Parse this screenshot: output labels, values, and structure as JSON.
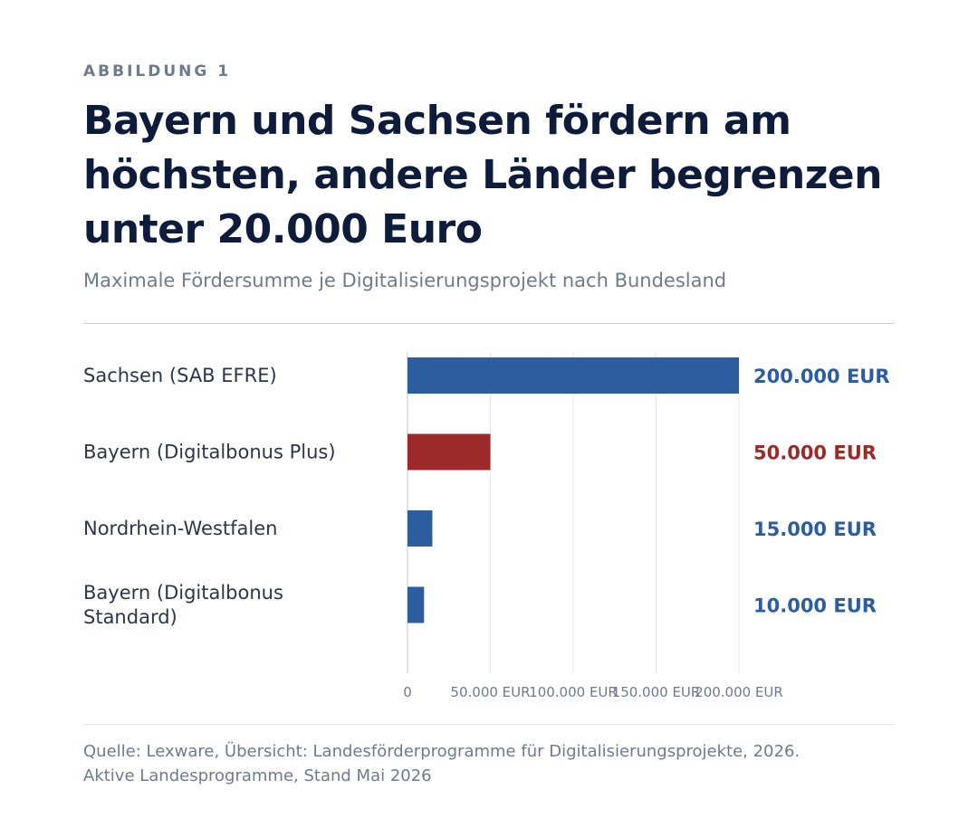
{
  "header": {
    "kicker": "ABBILDUNG 1",
    "title": "Bayern und Sachsen fördern am höchsten, andere Länder begrenzen unter 20.000 Euro",
    "subtitle": "Maximale Fördersumme je Digitalisierungsprojekt nach Bundesland"
  },
  "colors": {
    "default_bar": "#2c5d9f",
    "highlight_bar": "#9b2a28",
    "gridline": "#e6e8ec",
    "axis": "#c2c7cf"
  },
  "chart_data": {
    "type": "bar",
    "orientation": "horizontal",
    "categories": [
      [
        "Sachsen (SAB EFRE)"
      ],
      [
        "Bayern (Digitalbonus Plus)"
      ],
      [
        "Nordrhein-Westfalen"
      ],
      [
        "Bayern (Digitalbonus",
        "Standard)"
      ]
    ],
    "values": [
      200000,
      50000,
      15000,
      10000
    ],
    "value_labels": [
      "200.000 EUR",
      "50.000 EUR",
      "15.000 EUR",
      "10.000 EUR"
    ],
    "highlight": [
      false,
      true,
      false,
      false
    ],
    "xlim": [
      0,
      200000
    ],
    "xticks": [
      0,
      50000,
      100000,
      150000,
      200000
    ],
    "xtick_labels": [
      "0",
      "50.000 EUR",
      "100.000 EUR",
      "150.000 EUR",
      "200.000 EUR"
    ],
    "grid": true
  },
  "footer": {
    "source_line1": "Quelle: Lexware, Übersicht: Landesförderprogramme für Digitalisierungsprojekte, 2026.",
    "source_line2": "Aktive Landesprogramme, Stand Mai 2026"
  }
}
